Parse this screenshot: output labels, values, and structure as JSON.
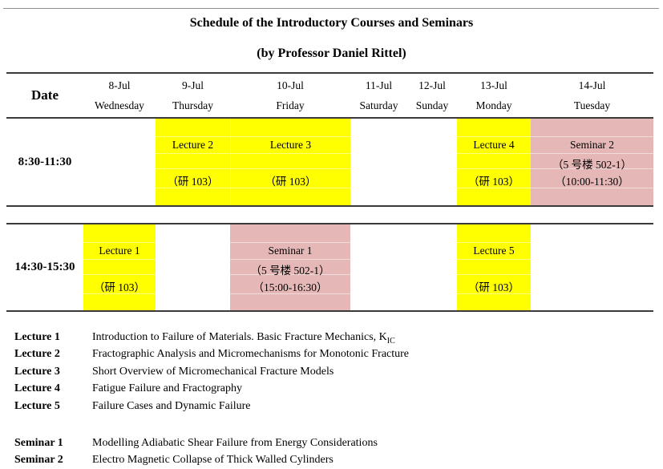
{
  "page": {
    "title": "Schedule of the Introductory Courses and Seminars",
    "subtitle": "(by Professor Daniel Rittel)"
  },
  "colors": {
    "highlight_yellow": "#FFFF00",
    "highlight_pink": "#E5B8B7",
    "border_dark": "#3a3a3a"
  },
  "table": {
    "date_header": "Date",
    "days": [
      {
        "date": "8-Jul",
        "day": "Wednesday"
      },
      {
        "date": "9-Jul",
        "day": "Thursday"
      },
      {
        "date": "10-Jul",
        "day": "Friday"
      },
      {
        "date": "11-Jul",
        "day": "Saturday"
      },
      {
        "date": "12-Jul",
        "day": "Sunday"
      },
      {
        "date": "13-Jul",
        "day": "Monday"
      },
      {
        "date": "14-Jul",
        "day": "Tuesday"
      }
    ],
    "rows": [
      {
        "time": "8:30-11:30",
        "cells": {
          "thursday": {
            "title": "Lecture 2",
            "room": "（研 103）"
          },
          "friday": {
            "title": "Lecture 3",
            "room": "（研 103）"
          },
          "monday": {
            "title": "Lecture 4",
            "room": "（研 103）"
          },
          "tuesday": {
            "title": "Seminar 2",
            "room": "（5 号楼 502-1）",
            "time": "（10:00-11:30）"
          }
        }
      },
      {
        "time": "14:30-15:30",
        "cells": {
          "wednesday": {
            "title": "Lecture 1",
            "room": "（研 103）"
          },
          "friday": {
            "title": "Seminar 1",
            "room": "（5 号楼 502-1）",
            "time": "（15:00-16:30）"
          },
          "monday": {
            "title": "Lecture 5",
            "room": "（研 103）"
          }
        }
      }
    ]
  },
  "legend": {
    "lectures": [
      {
        "label": "Lecture 1",
        "text": "Introduction to Failure of Materials. Basic Fracture Mechanics, K",
        "text_sub": "IC"
      },
      {
        "label": "Lecture 2",
        "text": "Fractographic Analysis and Micromechanisms for Monotonic Fracture"
      },
      {
        "label": "Lecture 3",
        "text": "Short Overview of Micromechanical Fracture Models"
      },
      {
        "label": "Lecture 4",
        "text": "Fatigue Failure and Fractography"
      },
      {
        "label": "Lecture 5",
        "text": "Failure Cases and Dynamic Failure"
      }
    ],
    "seminars": [
      {
        "label": "Seminar 1",
        "text": "Modelling Adiabatic Shear Failure from Energy Considerations"
      },
      {
        "label": "Seminar 2",
        "text": "Electro Magnetic Collapse of Thick Walled Cylinders"
      }
    ]
  }
}
